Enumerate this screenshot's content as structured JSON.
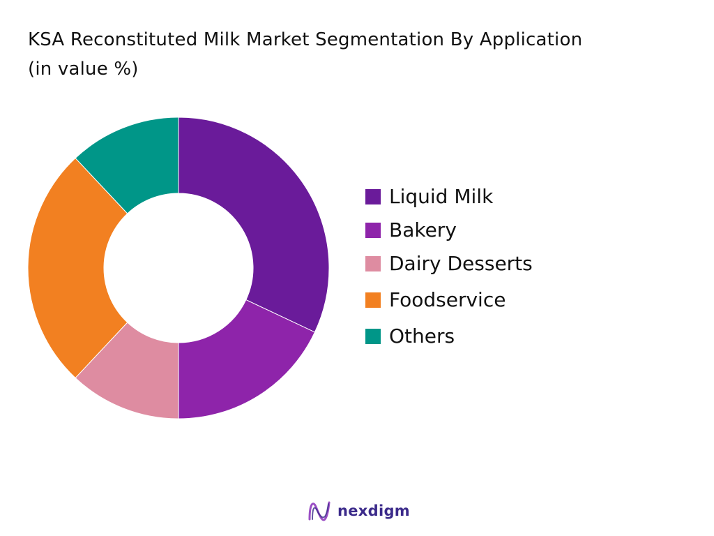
{
  "chart_data": {
    "type": "pie",
    "title": "KSA Reconstituted Milk Market Segmentation By Application",
    "subtitle": "(in value %)",
    "categories": [
      "Liquid Milk",
      "Bakery",
      "Dairy Desserts",
      "Foodservice",
      "Others"
    ],
    "values": [
      32,
      18,
      12,
      26,
      12
    ],
    "colors": [
      "#6a1b9a",
      "#8e24aa",
      "#de8ca1",
      "#f28021",
      "#009688"
    ],
    "donut": true,
    "legend_position": "right"
  },
  "brand": {
    "name": "nexdigm",
    "color": "#3b2a8a",
    "accent": "#9b4fc5"
  }
}
